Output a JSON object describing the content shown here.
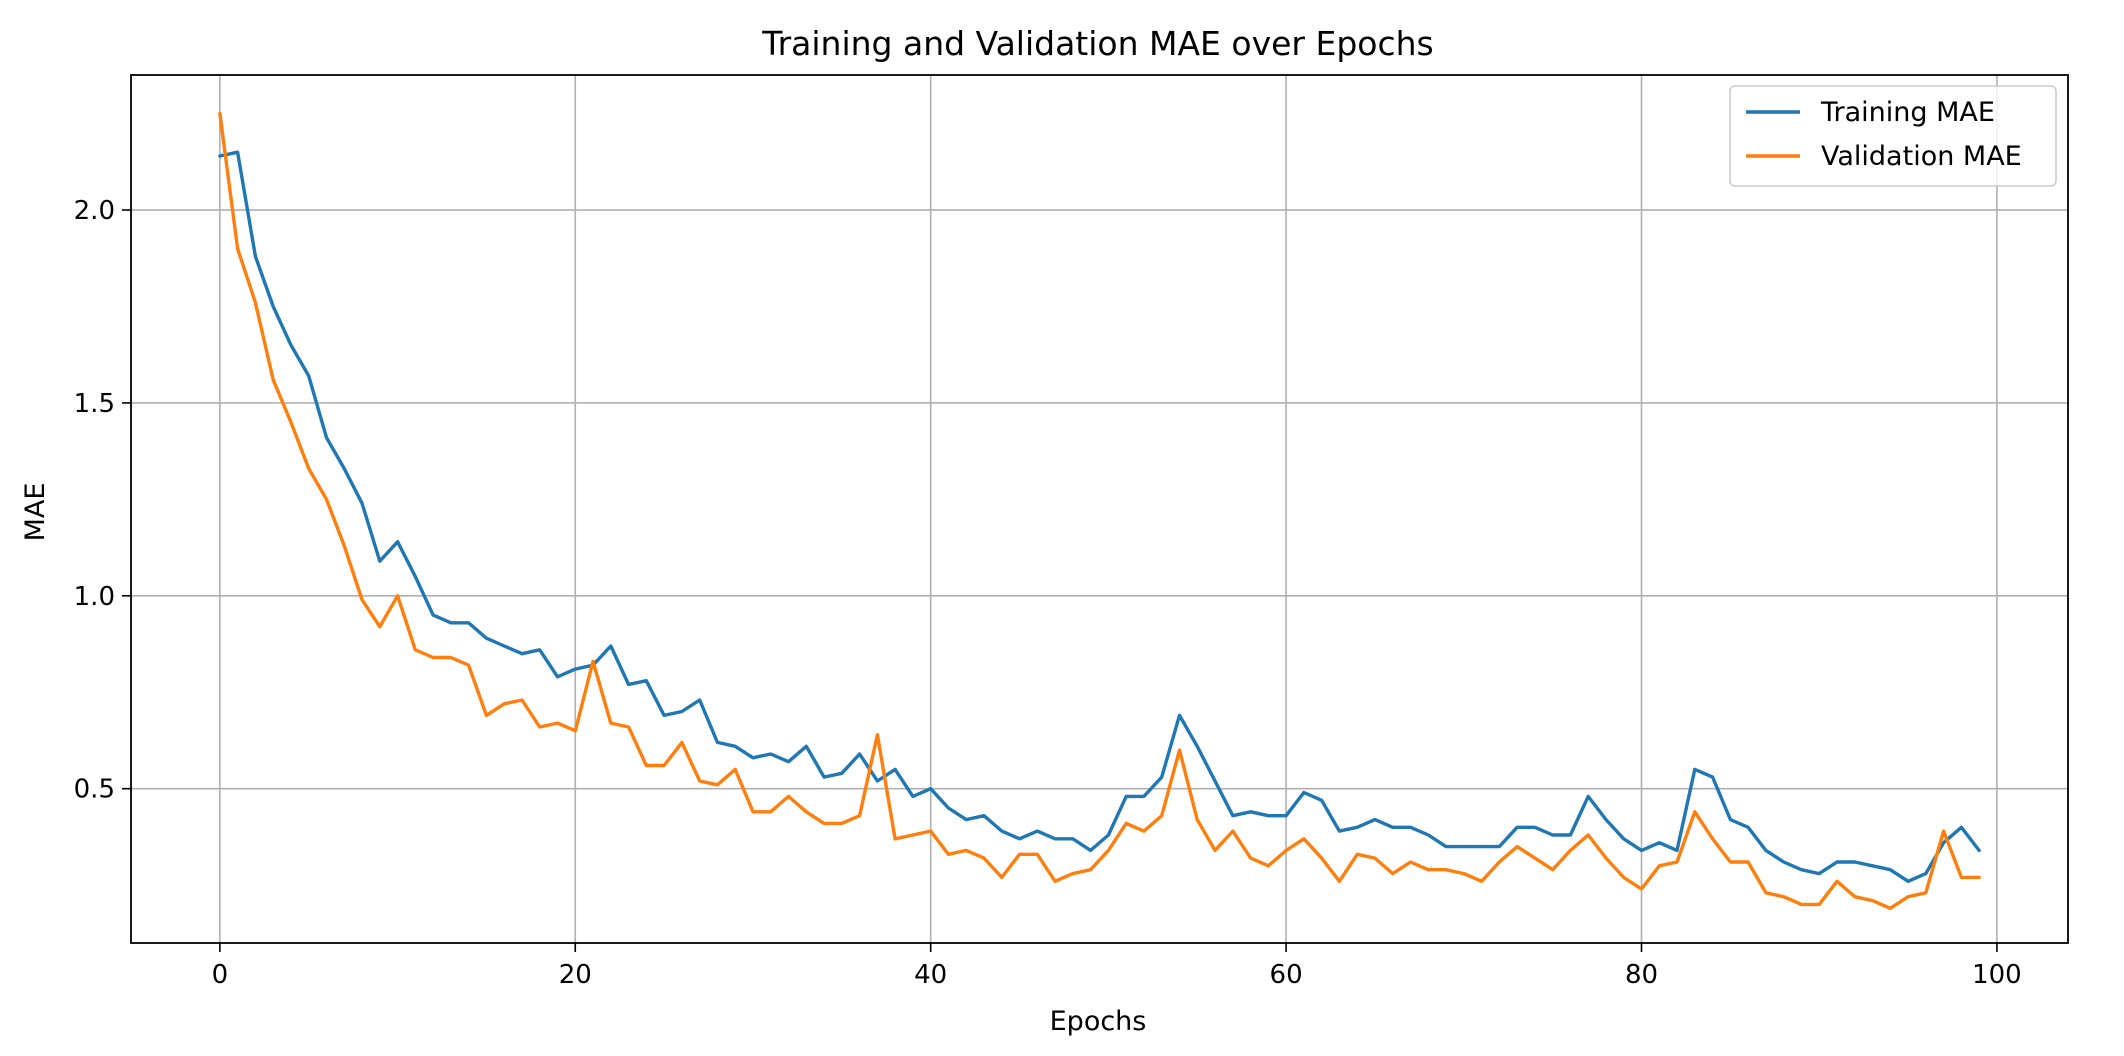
{
  "chart_data": {
    "type": "line",
    "title": "Training and Validation MAE over Epochs",
    "xlabel": "Epochs",
    "ylabel": "MAE",
    "xlim": [
      -5,
      104
    ],
    "ylim": [
      0.1,
      2.35
    ],
    "xticks": [
      0,
      20,
      40,
      60,
      80,
      100
    ],
    "yticks": [
      0.5,
      1.0,
      1.5,
      2.0
    ],
    "xtick_labels": [
      "0",
      "20",
      "40",
      "60",
      "80",
      "100"
    ],
    "ytick_labels": [
      "0.5",
      "1.0",
      "1.5",
      "2.0"
    ],
    "grid": true,
    "legend_position": "top-right",
    "series": [
      {
        "name": "Training MAE",
        "color": "#1f77b4",
        "values": [
          2.14,
          2.15,
          1.88,
          1.75,
          1.65,
          1.57,
          1.41,
          1.33,
          1.24,
          1.09,
          1.14,
          1.05,
          0.95,
          0.93,
          0.93,
          0.89,
          0.87,
          0.85,
          0.86,
          0.79,
          0.81,
          0.82,
          0.87,
          0.77,
          0.78,
          0.69,
          0.7,
          0.73,
          0.62,
          0.61,
          0.58,
          0.59,
          0.57,
          0.61,
          0.53,
          0.54,
          0.59,
          0.52,
          0.55,
          0.48,
          0.5,
          0.45,
          0.42,
          0.43,
          0.39,
          0.37,
          0.39,
          0.37,
          0.37,
          0.34,
          0.38,
          0.48,
          0.48,
          0.53,
          0.69,
          0.61,
          0.52,
          0.43,
          0.44,
          0.43,
          0.43,
          0.49,
          0.47,
          0.39,
          0.4,
          0.42,
          0.4,
          0.4,
          0.38,
          0.35,
          0.35,
          0.35,
          0.35,
          0.4,
          0.4,
          0.38,
          0.38,
          0.48,
          0.42,
          0.37,
          0.34,
          0.36,
          0.34,
          0.55,
          0.53,
          0.42,
          0.4,
          0.34,
          0.31,
          0.29,
          0.28,
          0.31,
          0.31,
          0.3,
          0.29,
          0.26,
          0.28,
          0.36,
          0.4,
          0.34
        ]
      },
      {
        "name": "Validation MAE",
        "color": "#ff7f0e",
        "values": [
          2.25,
          1.9,
          1.76,
          1.56,
          1.45,
          1.33,
          1.25,
          1.13,
          0.99,
          0.92,
          1.0,
          0.86,
          0.84,
          0.84,
          0.82,
          0.69,
          0.72,
          0.73,
          0.66,
          0.67,
          0.65,
          0.83,
          0.67,
          0.66,
          0.56,
          0.56,
          0.62,
          0.52,
          0.51,
          0.55,
          0.44,
          0.44,
          0.48,
          0.44,
          0.41,
          0.41,
          0.43,
          0.64,
          0.37,
          0.38,
          0.39,
          0.33,
          0.34,
          0.32,
          0.27,
          0.33,
          0.33,
          0.26,
          0.28,
          0.29,
          0.34,
          0.41,
          0.39,
          0.43,
          0.6,
          0.42,
          0.34,
          0.39,
          0.32,
          0.3,
          0.34,
          0.37,
          0.32,
          0.26,
          0.33,
          0.32,
          0.28,
          0.31,
          0.29,
          0.29,
          0.28,
          0.26,
          0.31,
          0.35,
          0.32,
          0.29,
          0.34,
          0.38,
          0.32,
          0.27,
          0.24,
          0.3,
          0.31,
          0.44,
          0.37,
          0.31,
          0.31,
          0.23,
          0.22,
          0.2,
          0.2,
          0.26,
          0.22,
          0.21,
          0.19,
          0.22,
          0.23,
          0.39,
          0.27,
          0.27
        ]
      }
    ]
  }
}
